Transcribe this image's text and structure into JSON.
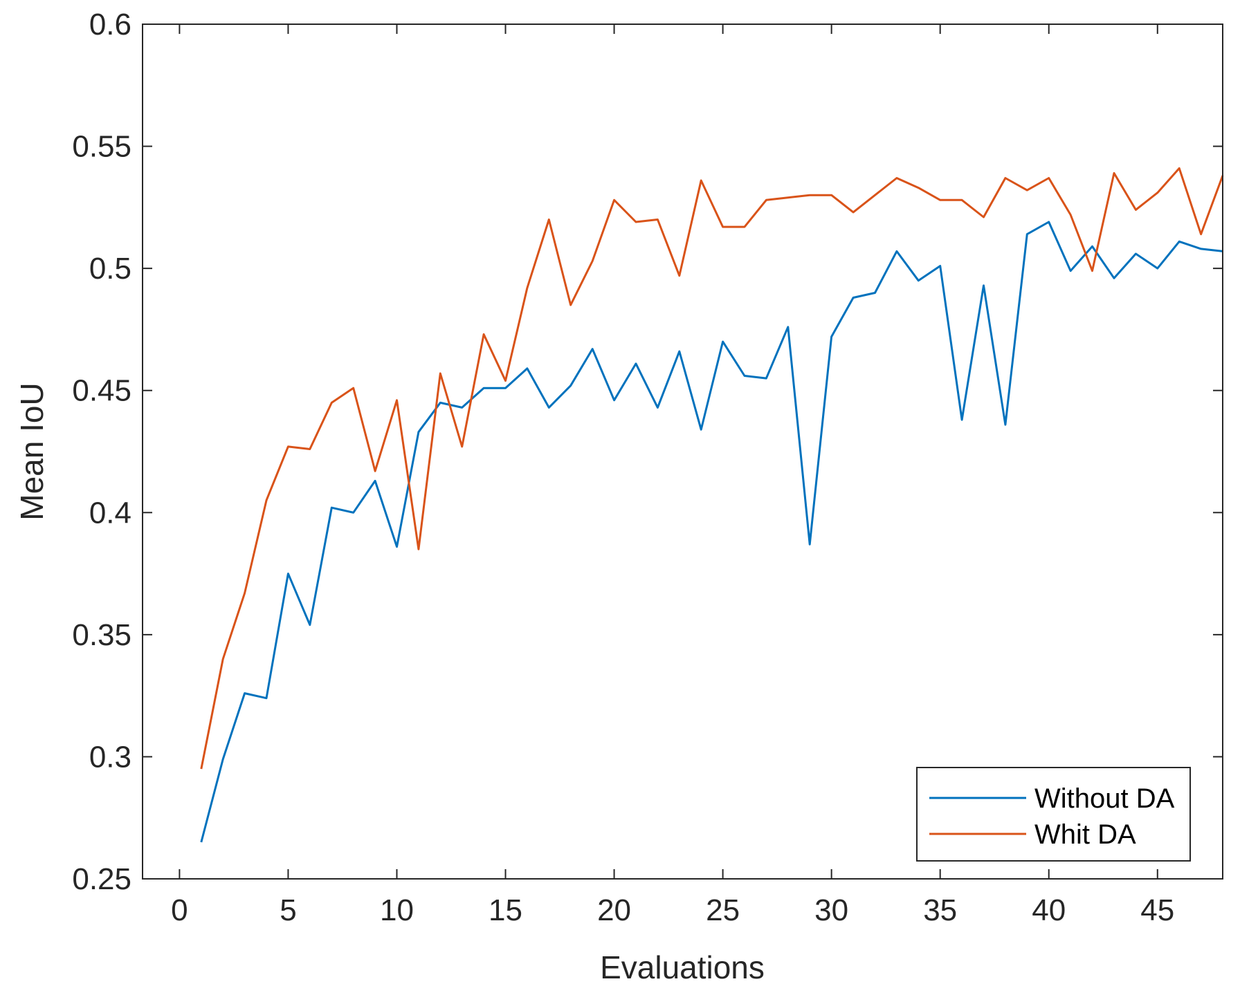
{
  "chart_data": {
    "type": "line",
    "title": "",
    "xlabel": "Evaluations",
    "ylabel": "Mean IoU",
    "xlim": [
      -1.7,
      48
    ],
    "ylim": [
      0.25,
      0.6
    ],
    "xticks": [
      0,
      5,
      10,
      15,
      20,
      25,
      30,
      35,
      40,
      45
    ],
    "yticks": [
      0.25,
      0.3,
      0.35,
      0.4,
      0.45,
      0.5,
      0.55,
      0.6
    ],
    "xtick_labels": [
      "0",
      "5",
      "10",
      "15",
      "20",
      "25",
      "30",
      "35",
      "40",
      "45"
    ],
    "ytick_labels": [
      "0.25",
      "0.3",
      "0.35",
      "0.4",
      "0.45",
      "0.5",
      "0.55",
      "0.6"
    ],
    "grid": false,
    "legend_position": "bottom-right",
    "x": [
      1,
      2,
      3,
      4,
      5,
      6,
      7,
      8,
      9,
      10,
      11,
      12,
      13,
      14,
      15,
      16,
      17,
      18,
      19,
      20,
      21,
      22,
      23,
      24,
      25,
      26,
      27,
      28,
      29,
      30,
      31,
      32,
      33,
      34,
      35,
      36,
      37,
      38,
      39,
      40,
      41,
      42,
      43,
      44,
      45,
      46,
      47,
      48
    ],
    "series": [
      {
        "name": "Without DA",
        "color": "#0072BD",
        "values": [
          0.265,
          0.299,
          0.326,
          0.324,
          0.375,
          0.354,
          0.402,
          0.4,
          0.413,
          0.386,
          0.433,
          0.445,
          0.443,
          0.451,
          0.451,
          0.459,
          0.443,
          0.452,
          0.467,
          0.446,
          0.461,
          0.443,
          0.466,
          0.434,
          0.47,
          0.456,
          0.455,
          0.476,
          0.387,
          0.472,
          0.488,
          0.49,
          0.507,
          0.495,
          0.501,
          0.438,
          0.493,
          0.436,
          0.514,
          0.519,
          0.499,
          0.509,
          0.496,
          0.506,
          0.5,
          0.511,
          0.508,
          0.507
        ]
      },
      {
        "name": "Whit DA",
        "color": "#D95319",
        "values": [
          0.295,
          0.34,
          0.367,
          0.405,
          0.427,
          0.426,
          0.445,
          0.451,
          0.417,
          0.446,
          0.385,
          0.457,
          0.427,
          0.473,
          0.454,
          0.492,
          0.52,
          0.485,
          0.503,
          0.528,
          0.519,
          0.52,
          0.497,
          0.536,
          0.517,
          0.517,
          0.528,
          0.529,
          0.53,
          0.53,
          0.523,
          0.53,
          0.537,
          0.533,
          0.528,
          0.528,
          0.521,
          0.537,
          0.532,
          0.537,
          0.522,
          0.499,
          0.539,
          0.524,
          0.531,
          0.541,
          0.514,
          0.538
        ]
      }
    ]
  }
}
